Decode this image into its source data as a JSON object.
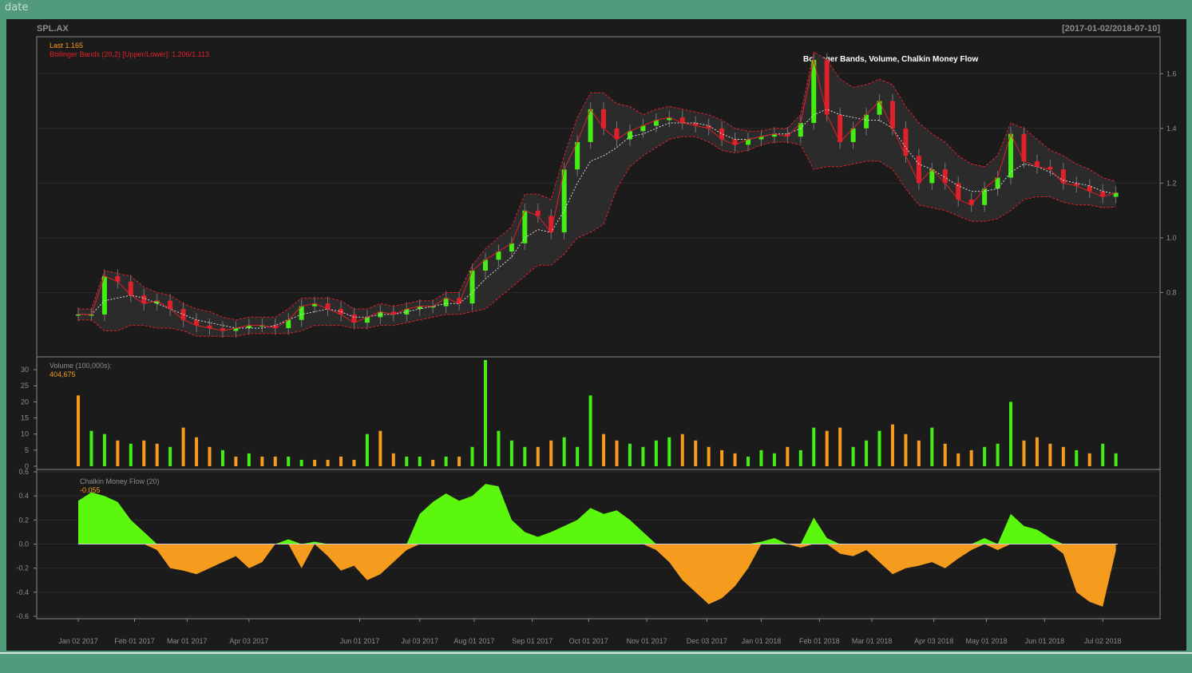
{
  "header": {
    "label": "date"
  },
  "chart_data": {
    "type": "candlestick",
    "symbol": "SPL.AX",
    "date_range": "[2017-01-02/2018-07-10]",
    "title": "Bollinger Bands, Volume, Chalkin Money Flow",
    "last_label": "Last 1.165",
    "bbands_label": "Bollinger Bands (20,2) [Upper/Lower]: 1.206/1.113",
    "volume_label": "Volume (100,000s):",
    "volume_last": "404,675",
    "cmf_label": "Chalkin Money Flow (20)",
    "cmf_last": "-0.055",
    "x_tick_labels": [
      "Jan 02 2017",
      "Feb 01 2017",
      "Mar 01 2017",
      "Apr 03 2017",
      "Jun 01 2017",
      "Jul 03 2017",
      "Aug 01 2017",
      "Sep 01 2017",
      "Oct 01 2017",
      "Nov 01 2017",
      "Dec 03 2017",
      "Jan 01 2018",
      "Feb 01 2018",
      "Mar 01 2018",
      "Apr 03 2018",
      "May 01 2018",
      "Jun 01 2018",
      "Jul 02 2018"
    ],
    "price_axis": {
      "ticks": [
        "0.8",
        "1.0",
        "1.2",
        "1.4",
        "1.6"
      ],
      "ylim": [
        0.6,
        1.7
      ]
    },
    "volume_axis": {
      "ticks": [
        "0",
        "5",
        "10",
        "15",
        "20",
        "25",
        "30"
      ],
      "ylim": [
        0,
        33
      ]
    },
    "cmf_axis": {
      "ticks": [
        "-0.6",
        "-0.4",
        "-0.2",
        "0.0",
        "0.2",
        "0.4",
        "0.6"
      ],
      "ylim": [
        -0.6,
        0.6
      ]
    },
    "close_series": {
      "dates": [
        "2017-01-02",
        "2017-01-09",
        "2017-01-16",
        "2017-01-23",
        "2017-01-30",
        "2017-02-06",
        "2017-02-13",
        "2017-02-20",
        "2017-02-27",
        "2017-03-06",
        "2017-03-13",
        "2017-03-20",
        "2017-03-27",
        "2017-04-03",
        "2017-04-10",
        "2017-04-17",
        "2017-04-24",
        "2017-05-01",
        "2017-05-08",
        "2017-05-15",
        "2017-05-22",
        "2017-05-29",
        "2017-06-05",
        "2017-06-12",
        "2017-06-19",
        "2017-06-26",
        "2017-07-03",
        "2017-07-10",
        "2017-07-17",
        "2017-07-24",
        "2017-07-31",
        "2017-08-07",
        "2017-08-14",
        "2017-08-21",
        "2017-08-28",
        "2017-09-04",
        "2017-09-11",
        "2017-09-18",
        "2017-09-25",
        "2017-10-02",
        "2017-10-09",
        "2017-10-16",
        "2017-10-23",
        "2017-10-30",
        "2017-11-06",
        "2017-11-13",
        "2017-11-20",
        "2017-11-27",
        "2017-12-04",
        "2017-12-11",
        "2017-12-18",
        "2017-12-25",
        "2018-01-01",
        "2018-01-08",
        "2018-01-15",
        "2018-01-22",
        "2018-01-29",
        "2018-02-05",
        "2018-02-12",
        "2018-02-19",
        "2018-02-26",
        "2018-03-05",
        "2018-03-12",
        "2018-03-19",
        "2018-03-26",
        "2018-04-02",
        "2018-04-09",
        "2018-04-16",
        "2018-04-23",
        "2018-04-30",
        "2018-05-07",
        "2018-05-14",
        "2018-05-21",
        "2018-05-28",
        "2018-06-04",
        "2018-06-11",
        "2018-06-18",
        "2018-06-25",
        "2018-07-02",
        "2018-07-09"
      ],
      "close": [
        0.72,
        0.72,
        0.86,
        0.84,
        0.79,
        0.76,
        0.77,
        0.74,
        0.7,
        0.68,
        0.67,
        0.66,
        0.67,
        0.68,
        0.68,
        0.67,
        0.7,
        0.75,
        0.76,
        0.74,
        0.72,
        0.69,
        0.71,
        0.73,
        0.72,
        0.74,
        0.75,
        0.75,
        0.78,
        0.76,
        0.88,
        0.92,
        0.95,
        0.98,
        1.1,
        1.08,
        1.02,
        1.25,
        1.35,
        1.47,
        1.4,
        1.36,
        1.39,
        1.41,
        1.43,
        1.44,
        1.42,
        1.41,
        1.4,
        1.36,
        1.34,
        1.36,
        1.37,
        1.38,
        1.37,
        1.42,
        1.65,
        1.45,
        1.35,
        1.4,
        1.45,
        1.5,
        1.4,
        1.3,
        1.2,
        1.25,
        1.2,
        1.14,
        1.12,
        1.18,
        1.22,
        1.38,
        1.28,
        1.26,
        1.25,
        1.2,
        1.19,
        1.17,
        1.15,
        1.165
      ],
      "upper": [
        0.74,
        0.74,
        0.88,
        0.87,
        0.86,
        0.82,
        0.8,
        0.79,
        0.76,
        0.74,
        0.73,
        0.71,
        0.7,
        0.71,
        0.71,
        0.71,
        0.74,
        0.78,
        0.78,
        0.78,
        0.77,
        0.74,
        0.74,
        0.76,
        0.75,
        0.76,
        0.77,
        0.77,
        0.8,
        0.8,
        0.9,
        0.96,
        1.0,
        1.04,
        1.16,
        1.16,
        1.14,
        1.3,
        1.44,
        1.53,
        1.53,
        1.49,
        1.48,
        1.45,
        1.47,
        1.48,
        1.47,
        1.46,
        1.45,
        1.43,
        1.4,
        1.39,
        1.39,
        1.4,
        1.4,
        1.45,
        1.68,
        1.65,
        1.58,
        1.55,
        1.56,
        1.58,
        1.56,
        1.48,
        1.42,
        1.38,
        1.35,
        1.3,
        1.27,
        1.26,
        1.3,
        1.42,
        1.4,
        1.36,
        1.32,
        1.3,
        1.27,
        1.25,
        1.22,
        1.206
      ],
      "lower": [
        0.7,
        0.7,
        0.66,
        0.66,
        0.68,
        0.68,
        0.67,
        0.67,
        0.66,
        0.64,
        0.64,
        0.64,
        0.64,
        0.65,
        0.65,
        0.65,
        0.65,
        0.66,
        0.68,
        0.68,
        0.68,
        0.67,
        0.67,
        0.68,
        0.68,
        0.69,
        0.7,
        0.71,
        0.72,
        0.72,
        0.73,
        0.74,
        0.78,
        0.82,
        0.86,
        0.9,
        0.9,
        0.94,
        1.0,
        1.02,
        1.05,
        1.18,
        1.26,
        1.3,
        1.33,
        1.36,
        1.37,
        1.37,
        1.35,
        1.32,
        1.31,
        1.32,
        1.34,
        1.35,
        1.35,
        1.34,
        1.25,
        1.26,
        1.26,
        1.27,
        1.28,
        1.28,
        1.25,
        1.18,
        1.12,
        1.11,
        1.1,
        1.08,
        1.06,
        1.06,
        1.07,
        1.1,
        1.14,
        1.15,
        1.15,
        1.13,
        1.12,
        1.12,
        1.11,
        1.113
      ],
      "middle": [
        0.72,
        0.72,
        0.77,
        0.78,
        0.79,
        0.78,
        0.76,
        0.74,
        0.72,
        0.7,
        0.69,
        0.68,
        0.67,
        0.67,
        0.67,
        0.68,
        0.7,
        0.72,
        0.73,
        0.74,
        0.73,
        0.71,
        0.71,
        0.72,
        0.72,
        0.73,
        0.74,
        0.75,
        0.76,
        0.76,
        0.8,
        0.85,
        0.89,
        0.93,
        1.0,
        1.03,
        1.02,
        1.1,
        1.2,
        1.28,
        1.3,
        1.33,
        1.37,
        1.38,
        1.4,
        1.42,
        1.42,
        1.42,
        1.41,
        1.38,
        1.36,
        1.36,
        1.37,
        1.38,
        1.38,
        1.4,
        1.45,
        1.47,
        1.45,
        1.44,
        1.43,
        1.43,
        1.4,
        1.33,
        1.27,
        1.25,
        1.22,
        1.19,
        1.17,
        1.17,
        1.18,
        1.24,
        1.27,
        1.26,
        1.24,
        1.21,
        1.2,
        1.19,
        1.17,
        1.16
      ]
    },
    "volume_series": {
      "dates": [
        "2017-01-02",
        "2017-01-09",
        "2017-01-16",
        "2017-01-23",
        "2017-01-30",
        "2017-02-06",
        "2017-02-13",
        "2017-02-20",
        "2017-02-27",
        "2017-03-06",
        "2017-03-13",
        "2017-03-20",
        "2017-03-27",
        "2017-04-03",
        "2017-04-10",
        "2017-04-17",
        "2017-04-24",
        "2017-05-01",
        "2017-05-08",
        "2017-05-15",
        "2017-05-22",
        "2017-05-29",
        "2017-06-05",
        "2017-06-12",
        "2017-06-19",
        "2017-06-26",
        "2017-07-03",
        "2017-07-10",
        "2017-07-17",
        "2017-07-24",
        "2017-07-31",
        "2017-08-07",
        "2017-08-14",
        "2017-08-21",
        "2017-08-28",
        "2017-09-04",
        "2017-09-11",
        "2017-09-18",
        "2017-09-25",
        "2017-10-02",
        "2017-10-09",
        "2017-10-16",
        "2017-10-23",
        "2017-10-30",
        "2017-11-06",
        "2017-11-13",
        "2017-11-20",
        "2017-11-27",
        "2017-12-04",
        "2017-12-11",
        "2017-12-18",
        "2017-12-25",
        "2018-01-01",
        "2018-01-08",
        "2018-01-15",
        "2018-01-22",
        "2018-01-29",
        "2018-02-05",
        "2018-02-12",
        "2018-02-19",
        "2018-02-26",
        "2018-03-05",
        "2018-03-12",
        "2018-03-19",
        "2018-03-26",
        "2018-04-02",
        "2018-04-09",
        "2018-04-16",
        "2018-04-23",
        "2018-04-30",
        "2018-05-07",
        "2018-05-14",
        "2018-05-21",
        "2018-05-28",
        "2018-06-04",
        "2018-06-11",
        "2018-06-18",
        "2018-06-25",
        "2018-07-02",
        "2018-07-09"
      ],
      "volume": [
        22,
        11,
        10,
        8,
        7,
        8,
        7,
        6,
        12,
        9,
        6,
        5,
        3,
        4,
        3,
        3,
        3,
        2,
        2,
        2,
        3,
        2,
        10,
        11,
        4,
        3,
        3,
        2,
        3,
        3,
        6,
        33,
        11,
        8,
        6,
        6,
        8,
        9,
        6,
        22,
        10,
        8,
        7,
        6,
        8,
        9,
        10,
        8,
        6,
        5,
        4,
        3,
        5,
        4,
        6,
        5,
        12,
        11,
        12,
        6,
        8,
        11,
        13,
        10,
        8,
        12,
        7,
        4,
        5,
        6,
        7,
        20,
        8,
        9,
        7,
        6,
        5,
        4,
        7,
        4
      ],
      "color": [
        "#f59b1e",
        "#44ee15",
        "#44ee15",
        "#f59b1e",
        "#44ee15",
        "#f59b1e",
        "#f59b1e",
        "#44ee15",
        "#f59b1e",
        "#f59b1e",
        "#f59b1e",
        "#44ee15",
        "#f59b1e",
        "#44ee15",
        "#f59b1e",
        "#f59b1e",
        "#44ee15",
        "#44ee15",
        "#f59b1e",
        "#f59b1e",
        "#f59b1e",
        "#f59b1e",
        "#44ee15",
        "#f59b1e",
        "#f59b1e",
        "#44ee15",
        "#44ee15",
        "#f59b1e",
        "#44ee15",
        "#f59b1e",
        "#44ee15",
        "#44ee15",
        "#44ee15",
        "#44ee15",
        "#44ee15",
        "#f59b1e",
        "#f59b1e",
        "#44ee15",
        "#44ee15",
        "#44ee15",
        "#f59b1e",
        "#f59b1e",
        "#44ee15",
        "#44ee15",
        "#44ee15",
        "#44ee15",
        "#f59b1e",
        "#f59b1e",
        "#f59b1e",
        "#f59b1e",
        "#f59b1e",
        "#44ee15",
        "#44ee15",
        "#44ee15",
        "#f59b1e",
        "#44ee15",
        "#44ee15",
        "#f59b1e",
        "#f59b1e",
        "#44ee15",
        "#44ee15",
        "#44ee15",
        "#f59b1e",
        "#f59b1e",
        "#f59b1e",
        "#44ee15",
        "#f59b1e",
        "#f59b1e",
        "#f59b1e",
        "#44ee15",
        "#44ee15",
        "#44ee15",
        "#f59b1e",
        "#f59b1e",
        "#f59b1e",
        "#f59b1e",
        "#44ee15",
        "#f59b1e",
        "#44ee15",
        "#44ee15"
      ]
    },
    "cmf_series": {
      "dates": [
        "2017-01-02",
        "2017-01-09",
        "2017-01-16",
        "2017-01-23",
        "2017-01-30",
        "2017-02-06",
        "2017-02-13",
        "2017-02-20",
        "2017-02-27",
        "2017-03-06",
        "2017-03-13",
        "2017-03-20",
        "2017-03-27",
        "2017-04-03",
        "2017-04-10",
        "2017-04-17",
        "2017-04-24",
        "2017-05-01",
        "2017-05-08",
        "2017-05-15",
        "2017-05-22",
        "2017-05-29",
        "2017-06-05",
        "2017-06-12",
        "2017-06-19",
        "2017-06-26",
        "2017-07-03",
        "2017-07-10",
        "2017-07-17",
        "2017-07-24",
        "2017-07-31",
        "2017-08-07",
        "2017-08-14",
        "2017-08-21",
        "2017-08-28",
        "2017-09-04",
        "2017-09-11",
        "2017-09-18",
        "2017-09-25",
        "2017-10-02",
        "2017-10-09",
        "2017-10-16",
        "2017-10-23",
        "2017-10-30",
        "2017-11-06",
        "2017-11-13",
        "2017-11-20",
        "2017-11-27",
        "2017-12-04",
        "2017-12-11",
        "2017-12-18",
        "2017-12-25",
        "2018-01-01",
        "2018-01-08",
        "2018-01-15",
        "2018-01-22",
        "2018-01-29",
        "2018-02-05",
        "2018-02-12",
        "2018-02-19",
        "2018-02-26",
        "2018-03-05",
        "2018-03-12",
        "2018-03-19",
        "2018-03-26",
        "2018-04-02",
        "2018-04-09",
        "2018-04-16",
        "2018-04-23",
        "2018-04-30",
        "2018-05-07",
        "2018-05-14",
        "2018-05-21",
        "2018-05-28",
        "2018-06-04",
        "2018-06-11",
        "2018-06-18",
        "2018-06-25",
        "2018-07-02",
        "2018-07-09"
      ],
      "cmf": [
        0.36,
        0.43,
        0.4,
        0.35,
        0.2,
        0.1,
        -0.05,
        -0.2,
        -0.22,
        -0.25,
        -0.2,
        -0.15,
        -0.1,
        -0.2,
        -0.15,
        0.0,
        0.04,
        -0.2,
        0.02,
        -0.1,
        -0.22,
        -0.18,
        -0.3,
        -0.25,
        -0.15,
        -0.05,
        0.25,
        0.35,
        0.42,
        0.36,
        0.4,
        0.5,
        0.48,
        0.2,
        0.1,
        0.06,
        0.1,
        0.15,
        0.2,
        0.3,
        0.25,
        0.28,
        0.2,
        0.1,
        -0.05,
        -0.15,
        -0.3,
        -0.4,
        -0.5,
        -0.45,
        -0.35,
        -0.2,
        0.02,
        0.05,
        0.0,
        -0.03,
        0.22,
        0.05,
        -0.08,
        -0.1,
        -0.05,
        -0.15,
        -0.25,
        -0.2,
        -0.18,
        -0.15,
        -0.2,
        -0.12,
        -0.05,
        0.05,
        -0.05,
        0.25,
        0.15,
        0.12,
        0.05,
        -0.08,
        -0.4,
        -0.48,
        -0.52,
        -0.055
      ]
    }
  }
}
